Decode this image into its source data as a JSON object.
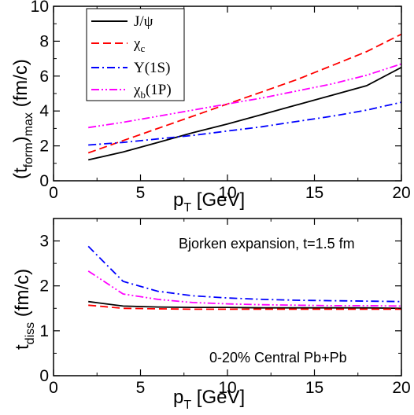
{
  "chart_data": [
    {
      "type": "line",
      "ylabel": {
        "base": "(t",
        "sub1": "form",
        "mid": ")",
        "sub2": "max",
        "unit": " (fm/c)"
      },
      "xlabel": {
        "base": "p",
        "sub": "T",
        "unit": " [GeV]"
      },
      "xlim": [
        0,
        20
      ],
      "ylim": [
        0,
        10
      ],
      "xticks": [
        0,
        5,
        10,
        15,
        20
      ],
      "yticks": [
        0,
        2,
        4,
        6,
        8,
        10
      ],
      "xtick_labels": [
        "0",
        "5",
        "10",
        "15",
        "20"
      ],
      "ytick_labels": [
        "0",
        "2",
        "4",
        "6",
        "8",
        "10"
      ],
      "legend_position": "top-left",
      "series": [
        {
          "name": "J/ψ",
          "legend": {
            "base": "J/ψ",
            "sub": ""
          },
          "color": "#000000",
          "dash": "solid",
          "x": [
            2,
            4,
            6,
            8,
            10,
            12,
            14,
            16,
            18,
            20
          ],
          "y": [
            1.2,
            1.65,
            2.2,
            2.75,
            3.25,
            3.8,
            4.35,
            4.9,
            5.45,
            6.5
          ]
        },
        {
          "name": "χc",
          "legend": {
            "base": "χ",
            "sub": "c"
          },
          "color": "#ff0000",
          "dash": "dash",
          "x": [
            2,
            4,
            6,
            8,
            10,
            12,
            14,
            16,
            18,
            20
          ],
          "y": [
            1.6,
            2.3,
            3.0,
            3.7,
            4.4,
            5.1,
            5.8,
            6.6,
            7.4,
            8.4
          ]
        },
        {
          "name": "Υ(1S)",
          "legend": {
            "base": "Υ(1S)",
            "sub": ""
          },
          "color": "#0000ff",
          "dash": "dashdot",
          "x": [
            2,
            4,
            6,
            8,
            10,
            12,
            14,
            16,
            18,
            20
          ],
          "y": [
            2.05,
            2.2,
            2.4,
            2.6,
            2.85,
            3.1,
            3.4,
            3.7,
            4.05,
            4.5
          ]
        },
        {
          "name": "χb(1P)",
          "legend": {
            "base": "χ",
            "sub": "b",
            "post": "(1P)"
          },
          "color": "#ff00ff",
          "dash": "dashdotdot",
          "x": [
            2,
            4,
            6,
            8,
            10,
            12,
            14,
            16,
            18,
            20
          ],
          "y": [
            3.05,
            3.35,
            3.7,
            4.05,
            4.4,
            4.75,
            5.15,
            5.55,
            6.05,
            6.7
          ]
        }
      ]
    },
    {
      "type": "line",
      "ylabel": {
        "base": "t",
        "sub": "diss",
        "unit": " (fm/c)"
      },
      "xlabel": {
        "base": "p",
        "sub": "T",
        "unit": " [GeV]"
      },
      "xlim": [
        0,
        20
      ],
      "ylim": [
        0,
        3.5
      ],
      "xticks": [
        0,
        5,
        10,
        15,
        20
      ],
      "yticks": [
        0,
        1,
        2,
        3
      ],
      "xtick_labels": [
        "0",
        "5",
        "10",
        "15",
        "20"
      ],
      "ytick_labels": [
        "0",
        "1",
        "2",
        "3"
      ],
      "annotations": [
        "Bjorken expansion, t=1.5 fm",
        "0-20% Central Pb+Pb"
      ],
      "series": [
        {
          "color": "#000000",
          "dash": "solid",
          "x": [
            2,
            4,
            6,
            8,
            10,
            12,
            14,
            16,
            18,
            20
          ],
          "y": [
            1.65,
            1.55,
            1.53,
            1.52,
            1.52,
            1.51,
            1.51,
            1.51,
            1.51,
            1.5
          ]
        },
        {
          "color": "#ff0000",
          "dash": "dash",
          "x": [
            2,
            4,
            6,
            8,
            10,
            12,
            14,
            16,
            18,
            20
          ],
          "y": [
            1.57,
            1.5,
            1.49,
            1.48,
            1.48,
            1.48,
            1.48,
            1.48,
            1.48,
            1.48
          ]
        },
        {
          "color": "#0000ff",
          "dash": "dashdot",
          "x": [
            2,
            4,
            6,
            8,
            10,
            12,
            14,
            16,
            18,
            20
          ],
          "y": [
            2.88,
            2.1,
            1.88,
            1.78,
            1.73,
            1.7,
            1.68,
            1.67,
            1.66,
            1.65
          ]
        },
        {
          "color": "#ff00ff",
          "dash": "dashdotdot",
          "x": [
            2,
            4,
            6,
            8,
            10,
            12,
            14,
            16,
            18,
            20
          ],
          "y": [
            2.33,
            1.82,
            1.7,
            1.63,
            1.6,
            1.58,
            1.57,
            1.56,
            1.56,
            1.55
          ]
        }
      ]
    }
  ]
}
